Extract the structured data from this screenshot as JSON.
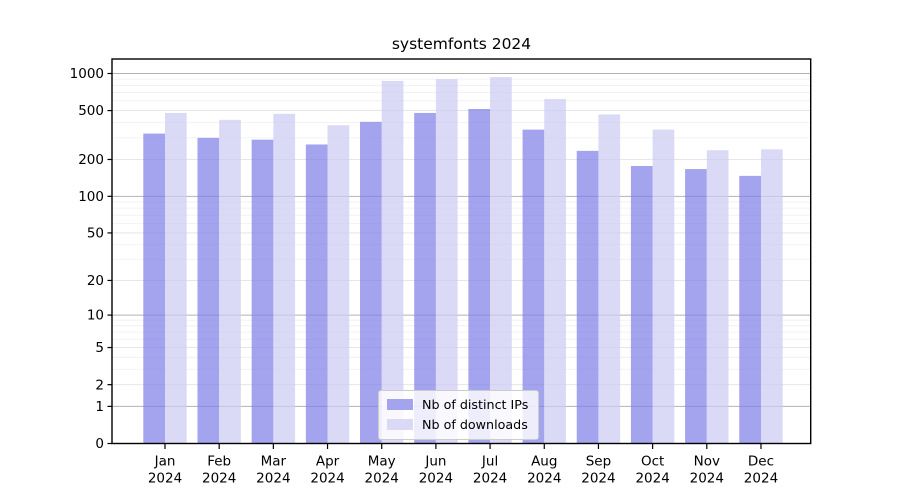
{
  "chart_data": {
    "type": "bar",
    "title": "systemfonts 2024",
    "categories": [
      "Jan",
      "Feb",
      "Mar",
      "Apr",
      "May",
      "Jun",
      "Jul",
      "Aug",
      "Sep",
      "Oct",
      "Nov",
      "Dec"
    ],
    "year_label": "2024",
    "series": [
      {
        "name": "Nb of distinct IPs",
        "color": "#8080e8",
        "values": [
          325,
          300,
          290,
          265,
          405,
          478,
          515,
          350,
          235,
          177,
          167,
          147
        ]
      },
      {
        "name": "Nb of downloads",
        "color": "#ccccf4",
        "values": [
          478,
          420,
          470,
          380,
          870,
          900,
          935,
          620,
          465,
          350,
          238,
          242
        ]
      }
    ],
    "bar_opacity": 0.72,
    "yscale": "log1p",
    "yticks": [
      0,
      1,
      2,
      5,
      10,
      20,
      50,
      100,
      200,
      500,
      1000
    ],
    "ylim": [
      0,
      1070
    ],
    "grid": true,
    "legend_position": "lower center",
    "grid_colors": {
      "major": "#b2b2b2",
      "labeled_minor": "#e2e2e2",
      "minor": "#efefef"
    }
  }
}
